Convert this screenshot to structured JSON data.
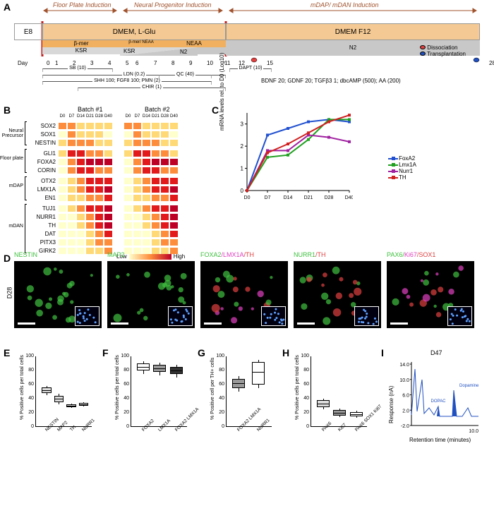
{
  "labels": {
    "A": "A",
    "B": "B",
    "C": "C",
    "D": "D",
    "E": "E",
    "F": "F",
    "G": "G",
    "H": "H",
    "I": "I"
  },
  "panelA": {
    "phases": [
      "Floor Plate Induction",
      "Neural Progenitor Induction",
      "mDAP/ mDAN Induction"
    ],
    "phase_color": "#a0522d",
    "e8": "E8",
    "dmem": "DMEM, L-Glu",
    "dmemf12": "DMEM F12",
    "colors": {
      "dmem": "#f4c993",
      "dmemf12": "#f4c993",
      "bmer": "#f0b060",
      "neaa": "#f0b060",
      "ksr": "#d8d8d8",
      "n2": "#c8c8c8"
    },
    "bmer": "β-mer",
    "neaa": "NEAA",
    "bmer_neaa": "β-mer/ NEAA",
    "ksr": "KSR",
    "n2": "N2",
    "day_label": "Day",
    "days": [
      "0",
      "1",
      "2",
      "3",
      "4",
      "5",
      "6",
      "7",
      "8",
      "9",
      "10",
      "11",
      "12",
      "15",
      "28"
    ],
    "legend": {
      "dissociation": "Dissociation",
      "transplantation": "Transplantation",
      "diss_color": "#e04040",
      "trans_color": "#2050c0"
    },
    "factors_bottom": "BDNF 20;  GDNF 20;  TGFβ3 1;  dbcAMP (500);  AA (200)",
    "factor_bars": [
      {
        "label": "SB (10)",
        "start": 1,
        "end": 5
      },
      {
        "label": "LDN (0.2)",
        "start": 1,
        "end": 12
      },
      {
        "label": "SHH 100; FGF8 100; PMN (2)",
        "start": 1,
        "end": 11
      },
      {
        "label": "CHIR (1)",
        "start": 3,
        "end": 12
      },
      {
        "label": "QC (40)",
        "start": 8,
        "end": 11
      },
      {
        "label": "DAPT (10)",
        "start": 12,
        "end": 15
      }
    ]
  },
  "panelB": {
    "batch1": "Batch #1",
    "batch2": "Batch #2",
    "timepoints": [
      "D0",
      "D7",
      "D14",
      "D21",
      "D28",
      "D40"
    ],
    "categories": [
      {
        "name": "Neural Precursor",
        "genes": [
          "SOX2",
          "SOX1",
          "NESTIN"
        ]
      },
      {
        "name": "Floor plate",
        "genes": [
          "GLI1",
          "FOXA2",
          "CORIN"
        ]
      },
      {
        "name": "mDAP",
        "genes": [
          "OTX2",
          "LMX1A",
          "EN1"
        ]
      },
      {
        "name": "mDAN",
        "genes": [
          "TUJ1",
          "NURR1",
          "TH",
          "DAT",
          "PITX3",
          "GIRK2"
        ]
      }
    ],
    "heatmap_colors": {
      "low": "#ffffcc",
      "mid": "#fd8d3c",
      "high": "#bd0026"
    },
    "legend": {
      "low": "Low",
      "high": "High"
    },
    "data_b1": [
      [
        3,
        3,
        2,
        2,
        2,
        2
      ],
      [
        1,
        3,
        2,
        2,
        2,
        1
      ],
      [
        2,
        3,
        3,
        3,
        2,
        2
      ],
      [
        2,
        4,
        4,
        3,
        3,
        2
      ],
      [
        1,
        3,
        4,
        5,
        5,
        5
      ],
      [
        1,
        3,
        4,
        4,
        3,
        3
      ],
      [
        1,
        2,
        3,
        4,
        4,
        4
      ],
      [
        1,
        2,
        3,
        4,
        4,
        5
      ],
      [
        1,
        2,
        2,
        3,
        3,
        4
      ],
      [
        1,
        2,
        3,
        4,
        4,
        5
      ],
      [
        1,
        1,
        2,
        3,
        4,
        5
      ],
      [
        1,
        1,
        2,
        3,
        4,
        5
      ],
      [
        1,
        1,
        1,
        2,
        3,
        4
      ],
      [
        1,
        1,
        1,
        2,
        3,
        3
      ],
      [
        1,
        1,
        1,
        2,
        2,
        3
      ]
    ],
    "data_b2": [
      [
        3,
        3,
        2,
        2,
        2,
        2
      ],
      [
        1,
        3,
        2,
        2,
        2,
        1
      ],
      [
        2,
        3,
        3,
        3,
        2,
        2
      ],
      [
        2,
        4,
        4,
        3,
        3,
        2
      ],
      [
        1,
        3,
        4,
        5,
        5,
        5
      ],
      [
        1,
        3,
        4,
        4,
        3,
        3
      ],
      [
        1,
        2,
        3,
        4,
        4,
        4
      ],
      [
        1,
        2,
        3,
        4,
        4,
        5
      ],
      [
        1,
        2,
        2,
        3,
        3,
        4
      ],
      [
        1,
        2,
        3,
        4,
        4,
        5
      ],
      [
        1,
        1,
        2,
        3,
        4,
        5
      ],
      [
        1,
        1,
        2,
        3,
        4,
        5
      ],
      [
        1,
        1,
        1,
        2,
        3,
        4
      ],
      [
        1,
        1,
        1,
        2,
        3,
        3
      ],
      [
        1,
        1,
        1,
        2,
        2,
        3
      ]
    ]
  },
  "panelC": {
    "ylabel": "mRNA levels rel. to D0 (Log10)",
    "x_ticks": [
      "D0",
      "D7",
      "D14",
      "D21",
      "D28",
      "D40"
    ],
    "y_ticks": [
      0,
      1,
      2,
      3
    ],
    "series": [
      {
        "name": "FoxA2",
        "color": "#2050d0",
        "values": [
          0,
          2.5,
          2.8,
          3.1,
          3.2,
          3.1
        ]
      },
      {
        "name": "Lmx1A",
        "color": "#20a020",
        "values": [
          0,
          1.5,
          1.6,
          2.3,
          3.2,
          3.2
        ]
      },
      {
        "name": "Nurr1",
        "color": "#a020a0",
        "values": [
          0,
          1.8,
          1.8,
          2.5,
          2.4,
          2.2
        ]
      },
      {
        "name": "TH",
        "color": "#d02020",
        "values": [
          0,
          1.7,
          2.1,
          2.6,
          3.1,
          3.4
        ]
      }
    ]
  },
  "panelD": {
    "row_label": "D28",
    "panels": [
      {
        "labels": [
          {
            "t": "NESTIN",
            "c": "#40c040"
          }
        ]
      },
      {
        "labels": [
          {
            "t": "MAP2",
            "c": "#40c040"
          }
        ]
      },
      {
        "labels": [
          {
            "t": "FOXA2",
            "c": "#40c040"
          },
          {
            "t": "/LMX1A",
            "c": "#e040c0"
          },
          {
            "t": "/TH",
            "c": "#e04040"
          }
        ]
      },
      {
        "labels": [
          {
            "t": "NURR1",
            "c": "#40c040"
          },
          {
            "t": "/TH",
            "c": "#e04040"
          }
        ]
      },
      {
        "labels": [
          {
            "t": "PAX6/",
            "c": "#40c040"
          },
          {
            "t": "Ki67",
            "c": "#e040c0"
          },
          {
            "t": "/SOX1",
            "c": "#e04040"
          }
        ]
      }
    ],
    "cell_bg": "#000000"
  },
  "panelE": {
    "ylabel": "% Positive cells per total cells",
    "y_ticks": [
      0,
      20,
      40,
      60,
      80,
      100
    ],
    "items": [
      {
        "label": "NESTIN",
        "median": 52,
        "q1": 48,
        "q3": 56,
        "min": 45,
        "max": 58,
        "fill": "#dddddd"
      },
      {
        "label": "MAP2",
        "median": 40,
        "q1": 35,
        "q3": 44,
        "min": 32,
        "max": 47,
        "fill": "#dddddd"
      },
      {
        "label": "TH",
        "median": 30,
        "q1": 28,
        "q3": 32,
        "min": 27,
        "max": 33,
        "fill": "#dddddd"
      },
      {
        "label": "NURR1",
        "median": 32,
        "q1": 30,
        "q3": 34,
        "min": 29,
        "max": 35,
        "fill": "#ffffff"
      }
    ]
  },
  "panelF": {
    "ylabel": "% Positive cells per total cells",
    "y_ticks": [
      0,
      20,
      40,
      60,
      80,
      100
    ],
    "items": [
      {
        "label": "FOXA2",
        "median": 85,
        "q1": 80,
        "q3": 90,
        "min": 75,
        "max": 93,
        "fill": "#ffffff"
      },
      {
        "label": "LMX1A",
        "median": 83,
        "q1": 78,
        "q3": 88,
        "min": 73,
        "max": 91,
        "fill": "#999999"
      },
      {
        "label": "FOXA2 LMX1A",
        "median": 80,
        "q1": 75,
        "q3": 85,
        "min": 70,
        "max": 88,
        "fill": "#333333"
      }
    ]
  },
  "panelG": {
    "ylabel": "% Positive cell per TH+ cells",
    "y_ticks": [
      0,
      20,
      40,
      60,
      80,
      100
    ],
    "items": [
      {
        "label": "FOXA2 LMX1A",
        "median": 62,
        "q1": 55,
        "q3": 68,
        "min": 50,
        "max": 72,
        "fill": "#999999"
      },
      {
        "label": "NURR1",
        "median": 78,
        "q1": 60,
        "q3": 92,
        "min": 55,
        "max": 95,
        "fill": "#ffffff"
      }
    ]
  },
  "panelH": {
    "ylabel": "% Positive cells per total cells",
    "y_ticks": [
      0,
      20,
      40,
      60,
      80,
      100
    ],
    "items": [
      {
        "label": "PAX6",
        "median": 33,
        "q1": 28,
        "q3": 38,
        "min": 25,
        "max": 40,
        "fill": "#dddddd"
      },
      {
        "label": "Ki67",
        "median": 20,
        "q1": 16,
        "q3": 24,
        "min": 14,
        "max": 26,
        "fill": "#999999"
      },
      {
        "label": "PAX6 SOX1 Ki67",
        "median": 18,
        "q1": 15,
        "q3": 21,
        "min": 13,
        "max": 23,
        "fill": "#ffffff"
      }
    ]
  },
  "panelI": {
    "title": "D47",
    "ylabel": "Response (nA)",
    "xlabel": "Retention time (minutes)",
    "y_ticks": [
      "-2.0",
      "2.0",
      "6.0",
      "10.0",
      "14.0"
    ],
    "x_end": "10.0",
    "peaks": {
      "dopac": "DOPAC",
      "dopamine": "Dopamine"
    },
    "peak_color": "#2050c0"
  }
}
